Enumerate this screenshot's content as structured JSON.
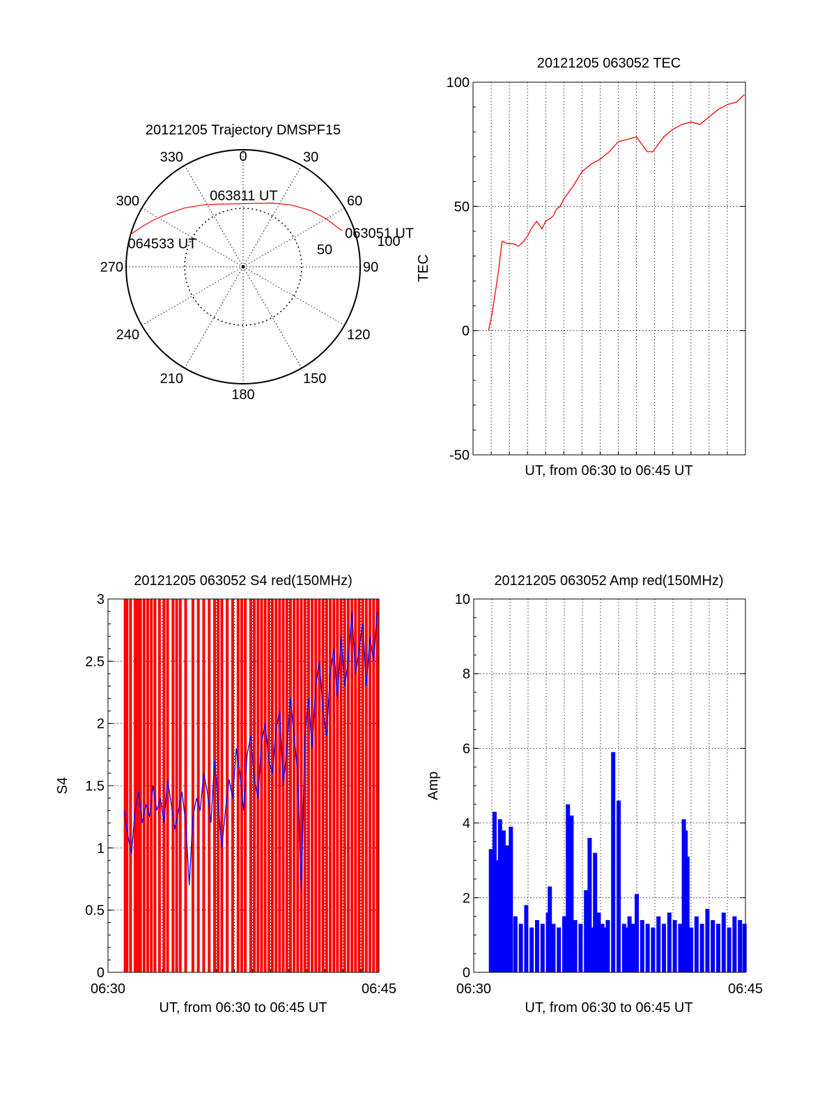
{
  "chart_data": [
    {
      "type": "polar",
      "title": "20121205 Trajectory DMSPF15",
      "angle_tick_labels": [
        "0",
        "30",
        "60",
        "90",
        "120",
        "150",
        "180",
        "210",
        "240",
        "270",
        "300",
        "330"
      ],
      "radial_tick_labels": [
        "50",
        "100"
      ],
      "rlim": [
        0,
        100
      ],
      "grid": true,
      "track": {
        "color": "#ff0000",
        "points": [
          {
            "az": 70,
            "r": 90
          },
          {
            "az": 60,
            "r": 82
          },
          {
            "az": 50,
            "r": 75
          },
          {
            "az": 38,
            "r": 67
          },
          {
            "az": 25,
            "r": 60
          },
          {
            "az": 10,
            "r": 55
          },
          {
            "az": -5,
            "r": 54
          },
          {
            "az": -20,
            "r": 57
          },
          {
            "az": -33,
            "r": 63
          },
          {
            "az": -45,
            "r": 71
          },
          {
            "az": -55,
            "r": 79
          },
          {
            "az": -63,
            "r": 87
          },
          {
            "az": -70,
            "r": 95
          },
          {
            "az": -74,
            "r": 100
          }
        ]
      },
      "time_labels": [
        {
          "text": "063051 UT",
          "az": 70,
          "r": 90
        },
        {
          "text": "063811 UT",
          "az": -5,
          "r": 54
        },
        {
          "text": "064533 UT",
          "az": -74,
          "r": 100
        }
      ]
    },
    {
      "type": "line",
      "title": "20121205 063052 TEC",
      "xlabel": "UT, from 06:30 to 06:45 UT",
      "ylabel": "TEC",
      "xlim": [
        0,
        15
      ],
      "ylim": [
        -50,
        100
      ],
      "yticks": [
        "-50",
        "0",
        "50",
        "100"
      ],
      "grid": true,
      "series": [
        {
          "color": "#ff0000",
          "x": [
            0.85,
            1.0,
            1.2,
            1.4,
            1.5,
            1.6,
            1.9,
            2.2,
            2.5,
            2.8,
            3.0,
            3.2,
            3.5,
            3.8,
            4.0,
            4.2,
            4.4,
            4.6,
            4.8,
            5.0,
            5.5,
            6.0,
            6.5,
            7.0,
            7.5,
            8.0,
            8.5,
            9.0,
            9.3,
            9.6,
            9.9,
            10.2,
            10.5,
            11.0,
            11.5,
            12.0,
            12.5,
            13.0,
            13.5,
            14.0,
            14.5,
            14.95
          ],
          "y": [
            0,
            5,
            14,
            24,
            30,
            36,
            35,
            35,
            34,
            36,
            38,
            41,
            44,
            41,
            44,
            45,
            46,
            49,
            50,
            53,
            58,
            64,
            67,
            69,
            72,
            76,
            77,
            78,
            75,
            72,
            72,
            75,
            78,
            81,
            83,
            84,
            83,
            86,
            89,
            91,
            92,
            95
          ]
        }
      ]
    },
    {
      "type": "line",
      "title": "20121205 063052 S4 red(150MHz)",
      "xlabel": "UT, from 06:30 to 06:45 UT",
      "ylabel": "S4",
      "xlim": [
        0,
        15
      ],
      "ylim": [
        0,
        3
      ],
      "xticks": [
        "06:30",
        "06:45"
      ],
      "yticks": [
        "0",
        "0.5",
        "1",
        "1.5",
        "2",
        "2.5",
        "3"
      ],
      "grid": true,
      "series": [
        {
          "color": "#ff0000",
          "x": [
            0.95,
            1.05,
            1.25,
            1.5,
            1.65,
            1.8,
            2.0,
            2.2,
            2.4,
            2.6,
            2.85,
            3.1,
            3.3,
            3.6,
            3.8,
            4.0,
            4.3,
            4.7,
            5.0,
            5.3,
            5.6,
            5.9,
            6.1,
            6.3,
            6.6,
            6.9,
            7.2,
            7.4,
            7.6,
            7.9,
            8.1,
            8.3,
            8.5,
            8.7,
            8.9,
            9.1,
            9.3,
            9.5,
            9.7,
            9.9,
            10.1,
            10.3,
            10.5,
            10.7,
            10.9,
            11.1,
            11.3,
            11.5,
            11.7,
            11.9,
            12.1,
            12.3,
            12.5,
            12.7,
            12.9,
            13.1,
            13.3,
            13.5,
            13.7,
            13.9,
            14.1,
            14.3,
            14.5,
            14.7,
            14.9
          ],
          "y": [
            3,
            3,
            3,
            3,
            3,
            3,
            3,
            3,
            3,
            3,
            3,
            3,
            3,
            3,
            3,
            3,
            3,
            3,
            3,
            3,
            3,
            3,
            3,
            3,
            3,
            3,
            3,
            3,
            3,
            3,
            3,
            3,
            3,
            3,
            3,
            3,
            3,
            3,
            3,
            3,
            3,
            3,
            3,
            3,
            3,
            3,
            3,
            3,
            3,
            3,
            3,
            3,
            3,
            3,
            3,
            3,
            3,
            3,
            3,
            3,
            3,
            3,
            3,
            3,
            3
          ],
          "mode": "spikes"
        },
        {
          "color": "#0000ff",
          "x": [
            0.9,
            1.1,
            1.3,
            1.5,
            1.7,
            1.9,
            2.1,
            2.3,
            2.5,
            2.7,
            2.9,
            3.1,
            3.3,
            3.5,
            3.7,
            3.9,
            4.1,
            4.3,
            4.5,
            4.7,
            4.9,
            5.1,
            5.3,
            5.5,
            5.7,
            5.9,
            6.1,
            6.3,
            6.5,
            6.7,
            6.9,
            7.1,
            7.3,
            7.5,
            7.7,
            7.9,
            8.1,
            8.3,
            8.5,
            8.7,
            8.9,
            9.1,
            9.3,
            9.5,
            9.7,
            9.9,
            10.1,
            10.3,
            10.5,
            10.7,
            10.9,
            11.1,
            11.3,
            11.5,
            11.7,
            11.9,
            12.1,
            12.3,
            12.5,
            12.7,
            12.9,
            13.1,
            13.3,
            13.5,
            13.7,
            13.9,
            14.1,
            14.3,
            14.5,
            14.7,
            14.9
          ],
          "y": [
            1.3,
            1.1,
            0.95,
            1.3,
            1.45,
            1.2,
            1.35,
            1.25,
            1.5,
            1.3,
            1.4,
            1.2,
            1.55,
            1.35,
            1.15,
            1.3,
            1.45,
            1.2,
            0.7,
            1.25,
            1.4,
            1.3,
            1.6,
            1.45,
            1.2,
            1.7,
            1.35,
            1.0,
            1.3,
            1.55,
            1.4,
            1.8,
            1.6,
            1.3,
            1.75,
            1.9,
            1.55,
            1.4,
            1.85,
            2.0,
            1.7,
            1.6,
            1.95,
            2.1,
            1.5,
            1.8,
            2.2,
            1.9,
            1.6,
            0.65,
            1.9,
            2.2,
            1.8,
            2.3,
            2.5,
            2.1,
            1.9,
            2.4,
            2.6,
            2.2,
            2.7,
            2.3,
            2.5,
            2.9,
            2.4,
            2.6,
            2.8,
            2.3,
            2.7,
            2.5,
            2.9
          ]
        }
      ]
    },
    {
      "type": "bar",
      "title": "20121205 063052 Amp red(150MHz)",
      "xlabel": "UT, from 06:30 to 06:45 UT",
      "ylabel": "Amp",
      "xlim": [
        0,
        15
      ],
      "ylim": [
        0,
        10
      ],
      "xticks": [
        "06:30",
        "06:45"
      ],
      "yticks": [
        "0",
        "2",
        "4",
        "6",
        "8",
        "10"
      ],
      "grid": true,
      "series": [
        {
          "color": "#0000ff",
          "x": [
            0.95,
            1.05,
            1.15,
            1.25,
            1.35,
            1.45,
            1.55,
            1.65,
            1.75,
            1.85,
            1.95,
            2.05,
            2.3,
            2.6,
            2.9,
            3.2,
            3.5,
            3.8,
            4.1,
            4.2,
            4.4,
            4.7,
            5.0,
            5.2,
            5.3,
            5.4,
            5.6,
            5.9,
            6.2,
            6.4,
            6.5,
            6.7,
            6.9,
            7.1,
            7.2,
            7.4,
            7.7,
            8.0,
            8.3,
            8.5,
            8.6,
            8.8,
            9.0,
            9.3,
            9.6,
            9.9,
            10.2,
            10.5,
            10.8,
            11.1,
            11.4,
            11.6,
            11.7,
            11.8,
            12.0,
            12.3,
            12.6,
            12.9,
            13.2,
            13.5,
            13.8,
            14.1,
            14.4,
            14.7,
            14.95
          ],
          "y": [
            3.3,
            2.5,
            4.3,
            3.0,
            2.6,
            4.1,
            2.8,
            3.8,
            2.9,
            3.4,
            2.7,
            3.9,
            1.5,
            1.3,
            1.8,
            1.2,
            1.4,
            1.3,
            1.6,
            2.3,
            1.3,
            1.2,
            1.5,
            4.5,
            3.8,
            4.2,
            1.4,
            1.3,
            2.2,
            3.6,
            1.2,
            3.2,
            1.6,
            1.3,
            1.2,
            1.4,
            5.9,
            4.6,
            1.3,
            1.2,
            1.5,
            1.3,
            2.1,
            1.4,
            1.3,
            1.2,
            1.5,
            1.3,
            1.6,
            1.4,
            1.3,
            4.1,
            3.8,
            3.1,
            1.2,
            1.5,
            1.3,
            1.7,
            1.4,
            1.3,
            1.6,
            1.2,
            1.5,
            1.4,
            1.3
          ]
        }
      ]
    }
  ]
}
